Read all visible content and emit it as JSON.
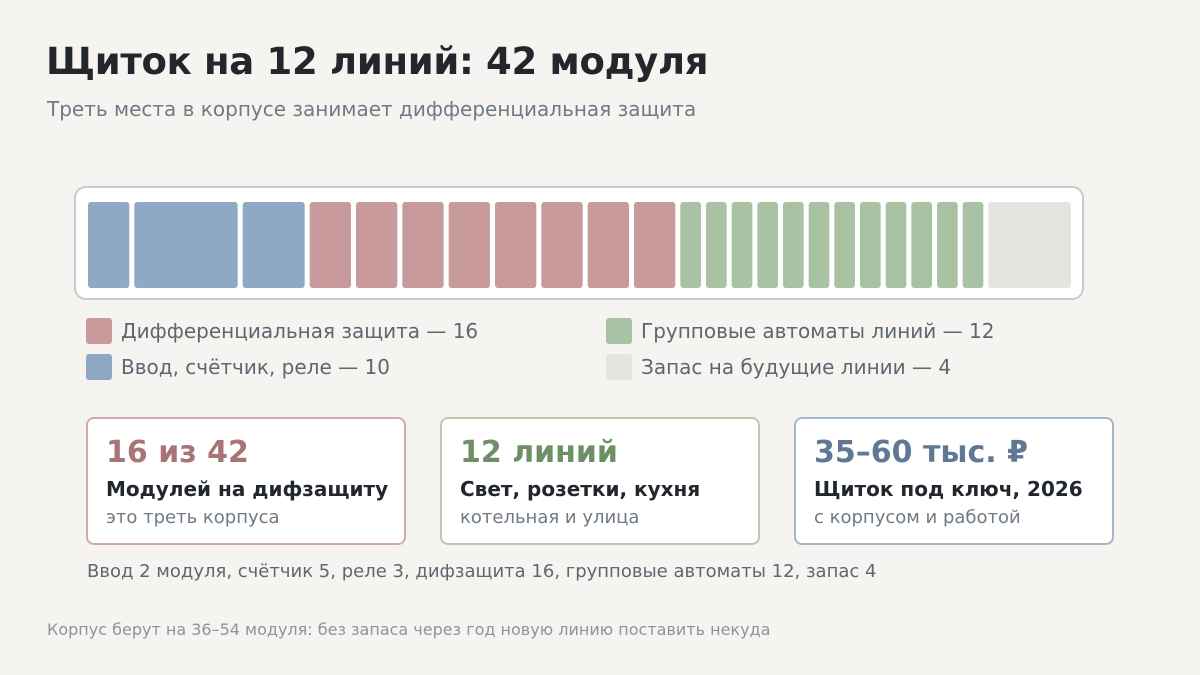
{
  "header": {
    "title": "Щиток на 12 линий: 42 модуля",
    "subtitle": "Треть места в корпусе занимает дифференциальная защита"
  },
  "colors": {
    "input": "#8fa8c4",
    "rcd": "#c89a9b",
    "breakers": "#a9c2a3",
    "spare": "#e6e4de",
    "card_rcd": "#a87475",
    "card_lines": "#6e8e66",
    "card_price": "#5f7893"
  },
  "chart_data": {
    "type": "bar",
    "total_modules": 42,
    "groups": [
      {
        "name": "Ввод, счётчик, реле",
        "legend": "Ввод, счётчик, реле — 10",
        "modules": 10,
        "blocks": [
          2,
          5,
          3
        ],
        "color": "#8fa8c4"
      },
      {
        "name": "Дифференциальная защита",
        "legend": "Дифференциальная защита — 16",
        "modules": 16,
        "blocks": [
          2,
          2,
          2,
          2,
          2,
          2,
          2,
          2
        ],
        "color": "#c89a9b"
      },
      {
        "name": "Групповые автоматы линий",
        "legend": "Групповые автоматы линий — 12",
        "modules": 12,
        "blocks": [
          1,
          1,
          1,
          1,
          1,
          1,
          1,
          1,
          1,
          1,
          1,
          1
        ],
        "color": "#a9c2a3"
      },
      {
        "name": "Запас на будущие линии",
        "legend": "Запас на будущие линии — 4",
        "modules": 4,
        "blocks": [
          4
        ],
        "color": "#e6e4de"
      }
    ],
    "legend_order": [
      1,
      2,
      0,
      3
    ]
  },
  "cards": [
    {
      "value": "16 из 42",
      "title": "Модулей на дифзащиту",
      "sub": "это треть корпуса",
      "color": "#a87475",
      "border": "#d3aaab"
    },
    {
      "value": "12 линий",
      "title": "Свет, розетки, кухня",
      "sub": "котельная и улица",
      "color": "#6e8e66",
      "border": "#b6ccb0"
    },
    {
      "value": "35–60 тыс. ₽",
      "title": "Щиток под ключ, 2026",
      "sub": "с корпусом и работой",
      "color": "#5f7893",
      "border": "#a4b6ca"
    }
  ],
  "breakdown": "Ввод 2 модуля, счётчик 5, реле 3, дифзащита 16, групповые автоматы 12, запас 4",
  "footnote": "Корпус берут на 36–54 модуля: без запаса через год новую линию поставить некуда"
}
